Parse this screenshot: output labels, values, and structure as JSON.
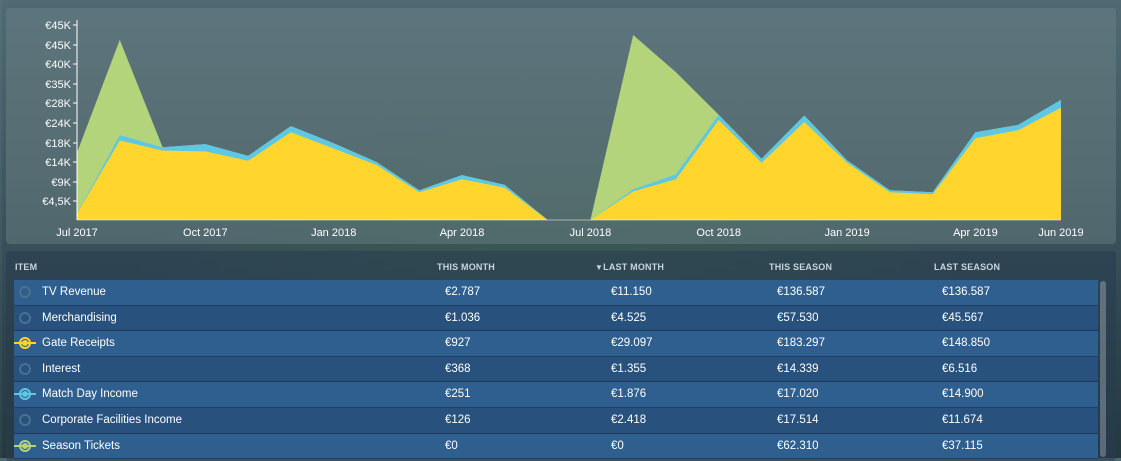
{
  "colors": {
    "gate_receipts": "#ffd52e",
    "match_day_income": "#5ec8e4",
    "season_tickets": "#b3d47a",
    "inactive": "#4d6f8f"
  },
  "chart_data": {
    "type": "area",
    "stacked": true,
    "y_ticks": [
      "€4,5K",
      "€9K",
      "€14K",
      "€18K",
      "€24K",
      "€28K",
      "€35K",
      "€40K",
      "€45K",
      "€45K"
    ],
    "x_tick_labels": [
      "Jul 2017",
      "Oct 2017",
      "Jan 2018",
      "Apr 2018",
      "Jul 2018",
      "Oct 2018",
      "Jan 2019",
      "Apr 2019",
      "Jun 2019"
    ],
    "categories": [
      "Jul 2017",
      "Aug 2017",
      "Sep 2017",
      "Oct 2017",
      "Nov 2017",
      "Dec 2017",
      "Jan 2018",
      "Feb 2018",
      "Mar 2018",
      "Apr 2018",
      "May 2018",
      "Jun 2018",
      "Jul 2018",
      "Aug 2018",
      "Sep 2018",
      "Oct 2018",
      "Nov 2018",
      "Dec 2018",
      "Jan 2019",
      "Feb 2019",
      "Mar 2019",
      "Apr 2019",
      "May 2019",
      "Jun 2019"
    ],
    "series": [
      {
        "name": "Gate Receipts",
        "color": "#ffd52e",
        "values": [
          1500,
          19500,
          17000,
          16800,
          14500,
          21500,
          17500,
          13500,
          6800,
          10000,
          7900,
          0,
          0,
          7000,
          10000,
          24500,
          14000,
          24000,
          14000,
          6800,
          6300,
          20000,
          22000,
          27500
        ]
      },
      {
        "name": "Match Day Income",
        "color": "#5ec8e4",
        "values": [
          0,
          1300,
          800,
          1800,
          1200,
          1500,
          1300,
          700,
          500,
          1000,
          700,
          0,
          0,
          500,
          1200,
          1300,
          1000,
          1600,
          600,
          500,
          500,
          1500,
          1300,
          1900
        ]
      },
      {
        "name": "Season Tickets",
        "color": "#b3d47a",
        "values": [
          15000,
          23300,
          0,
          0,
          0,
          0,
          0,
          0,
          0,
          0,
          0,
          0,
          0,
          37800,
          25000,
          0,
          0,
          0,
          0,
          0,
          0,
          0,
          0,
          0
        ]
      }
    ]
  },
  "table": {
    "columns": [
      "ITEM",
      "THIS MONTH",
      "LAST MONTH",
      "THIS SEASON",
      "LAST SEASON"
    ],
    "sorted_column": "LAST MONTH",
    "rows": [
      {
        "item": "TV Revenue",
        "this_month": "€2.787",
        "last_month": "€11.150",
        "this_season": "€136.587",
        "last_season": "€136.587",
        "toggle": "off"
      },
      {
        "item": "Merchandising",
        "this_month": "€1.036",
        "last_month": "€4.525",
        "this_season": "€57.530",
        "last_season": "€45.567",
        "toggle": "off"
      },
      {
        "item": "Gate Receipts",
        "this_month": "€927",
        "last_month": "€29.097",
        "this_season": "€183.297",
        "last_season": "€148.850",
        "toggle": "gate_receipts"
      },
      {
        "item": "Interest",
        "this_month": "€368",
        "last_month": "€1.355",
        "this_season": "€14.339",
        "last_season": "€6.516",
        "toggle": "off"
      },
      {
        "item": "Match Day Income",
        "this_month": "€251",
        "last_month": "€1.876",
        "this_season": "€17.020",
        "last_season": "€14.900",
        "toggle": "match_day_income"
      },
      {
        "item": "Corporate Facilities Income",
        "this_month": "€126",
        "last_month": "€2.418",
        "this_season": "€17.514",
        "last_season": "€11.674",
        "toggle": "off"
      },
      {
        "item": "Season Tickets",
        "this_month": "€0",
        "last_month": "€0",
        "this_season": "€62.310",
        "last_season": "€37.115",
        "toggle": "season_tickets"
      }
    ]
  }
}
